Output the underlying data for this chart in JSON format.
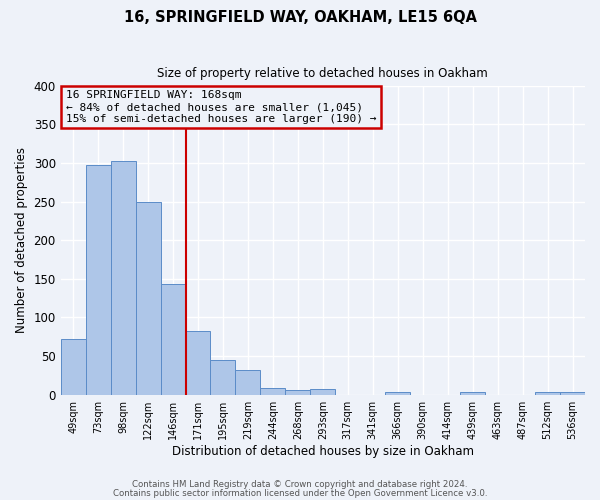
{
  "title": "16, SPRINGFIELD WAY, OAKHAM, LE15 6QA",
  "subtitle": "Size of property relative to detached houses in Oakham",
  "xlabel": "Distribution of detached houses by size in Oakham",
  "ylabel": "Number of detached properties",
  "bar_values": [
    72,
    298,
    303,
    250,
    143,
    83,
    45,
    32,
    9,
    6,
    7,
    0,
    0,
    4,
    0,
    0,
    3,
    0,
    0,
    4,
    3
  ],
  "bin_labels": [
    "49sqm",
    "73sqm",
    "98sqm",
    "122sqm",
    "146sqm",
    "171sqm",
    "195sqm",
    "219sqm",
    "244sqm",
    "268sqm",
    "293sqm",
    "317sqm",
    "341sqm",
    "366sqm",
    "390sqm",
    "414sqm",
    "439sqm",
    "463sqm",
    "487sqm",
    "512sqm",
    "536sqm"
  ],
  "bar_color": "#aec6e8",
  "bar_edge_color": "#5b8cc8",
  "property_line_color": "#cc0000",
  "annotation_title": "16 SPRINGFIELD WAY: 168sqm",
  "annotation_line1": "← 84% of detached houses are smaller (1,045)",
  "annotation_line2": "15% of semi-detached houses are larger (190) →",
  "annotation_box_color": "#cc0000",
  "ylim": [
    0,
    400
  ],
  "yticks": [
    0,
    50,
    100,
    150,
    200,
    250,
    300,
    350,
    400
  ],
  "footer1": "Contains HM Land Registry data © Crown copyright and database right 2024.",
  "footer2": "Contains public sector information licensed under the Open Government Licence v3.0.",
  "background_color": "#eef2f9",
  "grid_color": "#ffffff"
}
